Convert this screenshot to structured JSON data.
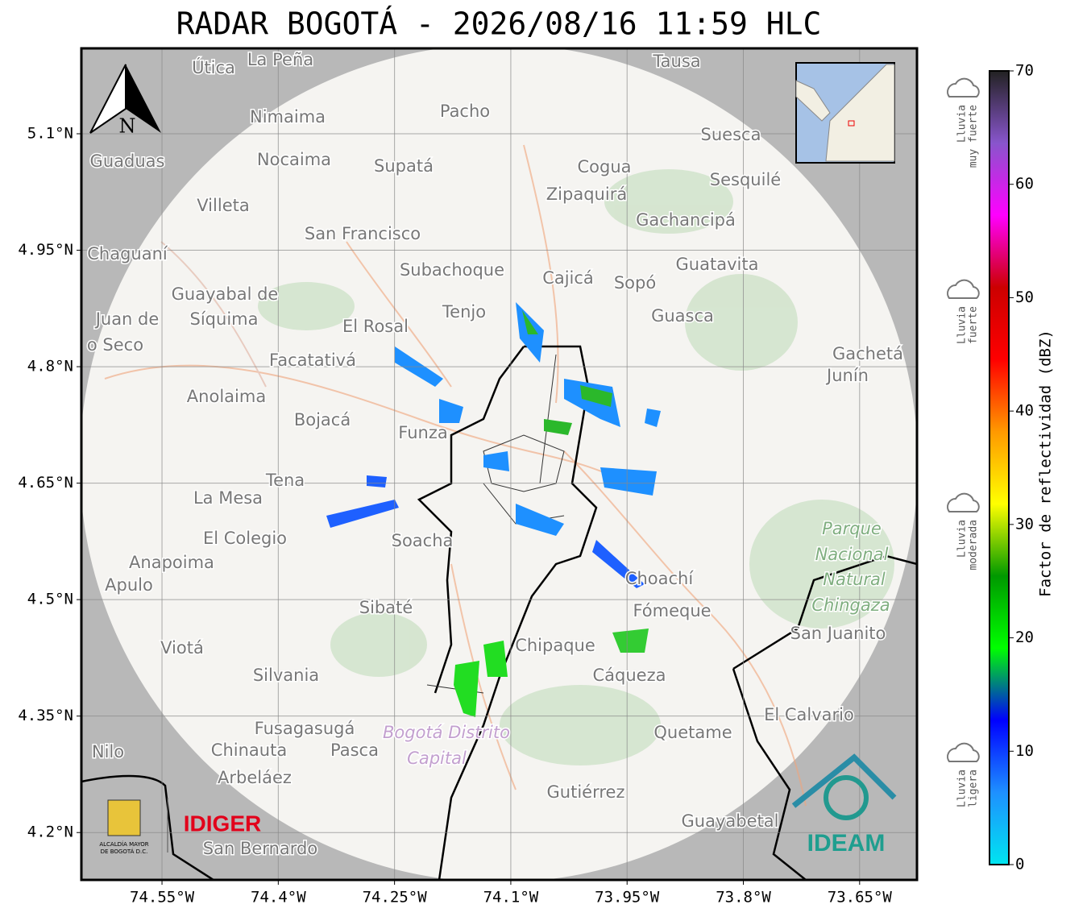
{
  "title": "RADAR BOGOTÁ - 2026/08/16 11:59 HLC",
  "map": {
    "north": "N",
    "xlim": [
      -74.654,
      -73.576
    ],
    "ylim": [
      4.139,
      5.21
    ],
    "xticks": [
      {
        "value": -74.55,
        "label": "74.55°W"
      },
      {
        "value": -74.4,
        "label": "74.4°W"
      },
      {
        "value": -74.25,
        "label": "74.25°W"
      },
      {
        "value": -74.1,
        "label": "74.1°W"
      },
      {
        "value": -73.95,
        "label": "73.95°W"
      },
      {
        "value": -73.8,
        "label": "73.8°W"
      },
      {
        "value": -73.65,
        "label": "73.65°W"
      }
    ],
    "yticks": [
      {
        "value": 5.1,
        "label": "5.1°N"
      },
      {
        "value": 4.95,
        "label": "4.95°N"
      },
      {
        "value": 4.8,
        "label": "4.8°N"
      },
      {
        "value": 4.65,
        "label": "4.65°N"
      },
      {
        "value": 4.5,
        "label": "4.5°N"
      },
      {
        "value": 4.35,
        "label": "4.35°N"
      },
      {
        "value": 4.2,
        "label": "4.2°N"
      }
    ],
    "places": [
      "Útica",
      "La Peña",
      "Tausa",
      "Pacho",
      "Nimaima",
      "Guaduas",
      "Nocaima",
      "Supatá",
      "Cogua",
      "Suesca",
      "Sesquilé",
      "Zipaquirá",
      "Villeta",
      "Gachancipá",
      "San Francisco",
      "Chaguaní",
      "Guatavita",
      "Subachoque",
      "Cajicá",
      "Sopó",
      "Guayabal de",
      "Síquima",
      "Tenjo",
      "Guasca",
      "Juan de",
      "o Seco",
      "El Rosal",
      "Facatativá",
      "Gachetá",
      "Junín",
      "Anolaima",
      "Bojacá",
      "Funza",
      "Tena",
      "La Mesa",
      "El Colegio",
      "Soacha",
      "Parque",
      "Nacional",
      "Natural",
      "Chingaza",
      "Anapoima",
      "Apulo",
      "Choachí",
      "Sibaté",
      "Fómeque",
      "San Juanito",
      "Viotá",
      "Chipaque",
      "Silvania",
      "Cáqueza",
      "El Calvario",
      "Fusagasugá",
      "Quetame",
      "Bogotá Distrito",
      "Capital",
      "Nilo",
      "Chinauta",
      "Pasca",
      "Arbeláez",
      "Gutiérrez",
      "Guayabetal",
      "San Bernardo"
    ]
  },
  "colorbar": {
    "label": "Factor de reflectividad (dBZ)",
    "lim": [
      0,
      70
    ],
    "ticks": [
      0,
      10,
      20,
      30,
      40,
      50,
      60,
      70
    ],
    "colors": [
      "#00e5f0",
      "#1e90ff",
      "#0000ff",
      "#00ff00",
      "#009900",
      "#ffff00",
      "#ff9900",
      "#ff0000",
      "#cc0000",
      "#ff00ff",
      "#8855cc",
      "#222222"
    ]
  },
  "legend": [
    {
      "lines": [
        "Lluvia",
        "muy fuerte"
      ]
    },
    {
      "lines": [
        "Lluvia",
        "fuerte"
      ]
    },
    {
      "lines": [
        "Lluvia",
        "moderada"
      ]
    },
    {
      "lines": [
        "Lluvia",
        "ligera"
      ]
    }
  ],
  "logos": {
    "left": "ALCALDÍA MAYOR",
    "left2": "DE BOGOTÁ D.C.",
    "mid": "IDIGER",
    "right": "IDEAM"
  }
}
